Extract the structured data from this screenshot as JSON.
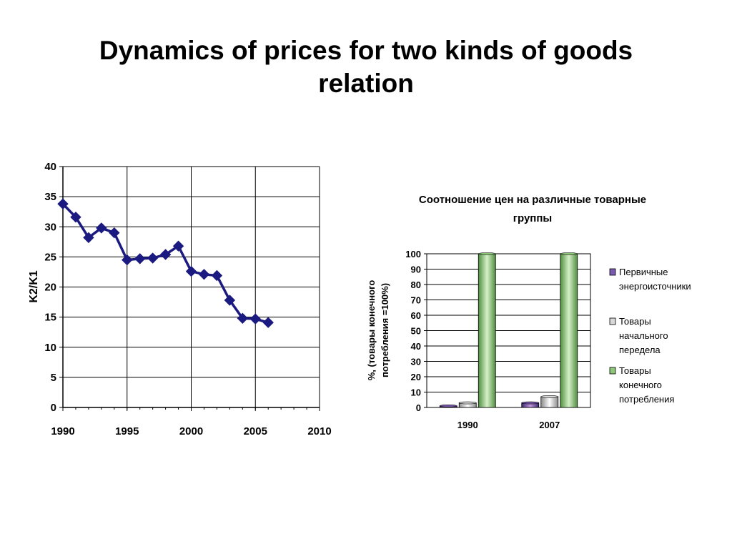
{
  "slide": {
    "title_line1": "Dynamics of prices for two kinds of goods",
    "title_line2": "relation"
  },
  "chart_data": [
    {
      "type": "line",
      "title": "",
      "xlabel": "",
      "ylabel": "K2/K1",
      "xlim": [
        1990,
        2010
      ],
      "ylim": [
        0,
        40
      ],
      "x_ticks": [
        "1990",
        "1995",
        "2000",
        "2005",
        "2010"
      ],
      "y_ticks": [
        "0",
        "5",
        "10",
        "15",
        "20",
        "25",
        "30",
        "35",
        "40"
      ],
      "grid": true,
      "marker": "diamond",
      "color": "#1a1a80",
      "x": [
        1990,
        1991,
        1992,
        1993,
        1994,
        1995,
        1996,
        1997,
        1998,
        1999,
        2000,
        2001,
        2002,
        2003,
        2004,
        2005,
        2006
      ],
      "y": [
        33.8,
        31.6,
        28.2,
        29.8,
        29.0,
        24.5,
        24.7,
        24.8,
        25.4,
        26.8,
        22.6,
        22.1,
        21.9,
        17.8,
        14.8,
        14.7,
        14.1
      ]
    },
    {
      "type": "bar",
      "title": "Соотношение цен на различные товарные группы",
      "xlabel": "",
      "ylabel": "%, (товары конечного потребления =100%)",
      "ylim": [
        0,
        100
      ],
      "y_ticks": [
        "0",
        "10",
        "20",
        "30",
        "40",
        "50",
        "60",
        "70",
        "80",
        "90",
        "100"
      ],
      "categories": [
        "1990",
        "2007"
      ],
      "grid": true,
      "legend_position": "right",
      "series": [
        {
          "name": "Первичные энергоисточники",
          "values": [
            1,
            3
          ],
          "color": "#7a5ab0"
        },
        {
          "name": "Товары начального передела",
          "values": [
            3,
            7
          ],
          "color": "#d8d8d8"
        },
        {
          "name": "Товары конечного потребления",
          "values": [
            100,
            100
          ],
          "color": "#8cc77a"
        }
      ],
      "legend": [
        {
          "lines": [
            "Первичные",
            "энергоисточники"
          ]
        },
        {
          "lines": [
            "Товары",
            "начального",
            "передела"
          ]
        },
        {
          "lines": [
            "Товары",
            "конечного",
            "потребления"
          ]
        }
      ],
      "ylabel_lines": [
        "%, (товары конечного",
        "потребления =100%)"
      ],
      "title_lines": [
        "Соотношение цен на различные товарные",
        "группы"
      ]
    }
  ]
}
